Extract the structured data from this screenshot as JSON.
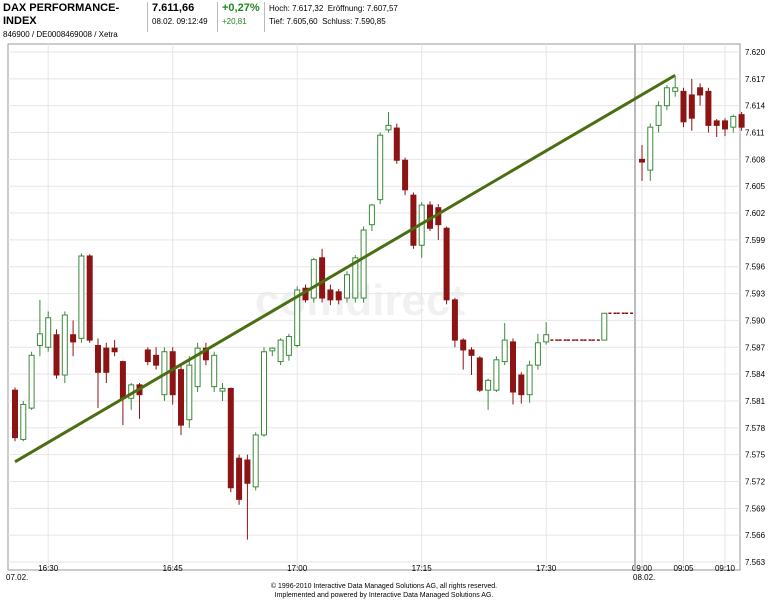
{
  "header": {
    "title": "DAX PERFORMANCE-INDEX",
    "code": "846900 / DE0008469008 / Xetra",
    "price": "7.611,66",
    "time": "08.02. 09:12:49",
    "change_pct": "+0,27%",
    "change_abs": "+20,81",
    "high": "Hoch: 7.617,32",
    "open": "Eröffnung: 7.607,57",
    "low": "Tief: 7.605,60",
    "close": "Schluss: 7.590,85"
  },
  "chart_data": {
    "type": "candlestick",
    "watermark": "comdirect",
    "categories": [
      null,
      null,
      null,
      null,
      "16:30",
      null,
      null,
      null,
      null,
      null,
      null,
      null,
      null,
      null,
      null,
      null,
      null,
      null,
      null,
      "16:45",
      null,
      null,
      null,
      null,
      null,
      null,
      null,
      null,
      null,
      null,
      null,
      null,
      null,
      null,
      "17:00",
      null,
      null,
      null,
      null,
      null,
      null,
      null,
      null,
      null,
      null,
      null,
      null,
      null,
      null,
      "17:15",
      null,
      null,
      null,
      null,
      null,
      null,
      null,
      null,
      null,
      null,
      null,
      null,
      null,
      null,
      "17:30",
      null,
      null,
      null,
      null,
      null,
      null,
      null,
      null,
      null,
      null,
      "09:00",
      null,
      null,
      null,
      null,
      "09:05",
      null,
      null,
      null,
      null,
      "09:10",
      null,
      null
    ],
    "day_labels": [
      {
        "label": "07.02.",
        "category": 0
      },
      {
        "label": "08.02.",
        "category": 75
      }
    ],
    "open": [
      7582.2,
      7576.7,
      7580.2,
      7587.2,
      7587,
      7588.4,
      7583.9,
      7588.4,
      7588,
      7597.2,
      7587.2,
      7586.9,
      7586.9,
      7585.4,
      7581.3,
      7582.8,
      7586.7,
      7586.1,
      7581.7,
      7586.5,
      7584.5,
      7578.9,
      7582.6,
      7586.9,
      7582.6,
      7582.1,
      7582.4,
      7574.6,
      7574.4,
      7571.4,
      7577.2,
      7586.6,
      7585.4,
      7586.1,
      7587.2,
      7593.6,
      7592.5,
      7597,
      7593.4,
      7593.2,
      7592.5,
      7592.5,
      7592.5,
      7600.7,
      7603.5,
      7611.3,
      7611.5,
      7607.9,
      7604,
      7598.4,
      7602.9,
      7602.6,
      7600.3,
      7592.3,
      7587.8,
      7586.7,
      7585.8,
      7582.2,
      7582.2,
      7585.4,
      7587.6,
      7583.9,
      7581.7,
      7585,
      7587.6,
      7587.8,
      7587.8,
      7587.8,
      7587.8,
      7587.8,
      7587.8,
      7587.8,
      7590.8,
      7590.8,
      7590.8,
      7608,
      7606.8,
      7611.8,
      7614,
      7615.6,
      7615.6,
      7615.2,
      7616,
      7615.6,
      7612.3,
      7612.3,
      7611.6,
      7613
    ],
    "high": [
      7582.5,
      7581,
      7586.5,
      7592.3,
      7591,
      7589,
      7591,
      7590,
      7597.5,
      7597.4,
      7588,
      7587.5,
      7587.8,
      7585.5,
      7583,
      7583,
      7587,
      7587,
      7587,
      7587,
      7585,
      7586,
      7587.5,
      7587.5,
      7586.5,
      7583,
      7582.5,
      7575,
      7575,
      7577.5,
      7587,
      7587,
      7588,
      7588.5,
      7593.8,
      7594,
      7597,
      7598,
      7594,
      7593.5,
      7595.5,
      7597.3,
      7600.5,
      7603,
      7611,
      7613.3,
      7612,
      7608.2,
      7604.3,
      7603.2,
      7603.3,
      7603,
      7600.5,
      7592.5,
      7588,
      7587,
      7586,
      7583.5,
      7586,
      7589.7,
      7588,
      7584.2,
      7585.5,
      7588.5,
      7589.8,
      7587.8,
      7587.8,
      7587.8,
      7587.8,
      7587.8,
      7587.8,
      7590.8,
      7590.8,
      7590.8,
      7590.8,
      7609.6,
      7612,
      7614.5,
      7616.3,
      7617.2,
      7616,
      7617,
      7616.5,
      7616,
      7612.5,
      7612.6,
      7613,
      7613.3
    ],
    "low": [
      7576.5,
      7576.5,
      7580,
      7586,
      7586.5,
      7583.5,
      7583,
      7586,
      7587.5,
      7587.5,
      7580.2,
      7583,
      7586,
      7578.3,
      7580,
      7579,
      7585,
      7584.5,
      7581,
      7580.6,
      7577.2,
      7578,
      7582,
      7585,
      7582,
      7581,
      7570.8,
      7569.4,
      7565.5,
      7571,
      7577,
      7586,
      7585,
      7585.5,
      7587,
      7592,
      7592,
      7592,
      7591.7,
      7591.8,
      7592,
      7592,
      7592,
      7600,
      7603,
      7611,
      7607.5,
      7604,
      7598,
      7597,
      7600,
      7599,
      7591.8,
      7587,
      7584.5,
      7583.9,
      7582,
      7580,
      7582,
      7585,
      7580.6,
      7580.7,
      7580.8,
      7584.5,
      7587.3,
      7587.8,
      7587.8,
      7587.8,
      7587.8,
      7587.8,
      7587.8,
      7587.8,
      7590.8,
      7590.8,
      7590.8,
      7605.6,
      7605.6,
      7611,
      7613.5,
      7615,
      7611.6,
      7611.2,
      7614,
      7611,
      7610.5,
      7610.6,
      7611,
      7611.2
    ],
    "close": [
      7576.9,
      7580.6,
      7586.1,
      7588.5,
      7590.3,
      7583.9,
      7590.6,
      7587.6,
      7597.2,
      7587.8,
      7584.2,
      7584.2,
      7586.5,
      7581.3,
      7582.8,
      7581.7,
      7585.4,
      7585,
      7586.5,
      7581.7,
      7578.3,
      7585,
      7586.9,
      7585.6,
      7586.1,
      7582.4,
      7571.3,
      7570,
      7571.8,
      7577.2,
      7586.5,
      7586.9,
      7587.8,
      7588.2,
      7593.4,
      7592.3,
      7596.8,
      7592.5,
      7592.3,
      7592.3,
      7595.1,
      7597,
      7600.1,
      7602.9,
      7610.7,
      7611.8,
      7607.9,
      7604.6,
      7598.4,
      7602.9,
      7600.3,
      7600.7,
      7592.3,
      7587.8,
      7586.7,
      7586.1,
      7582.2,
      7583.3,
      7585.6,
      7587.8,
      7582,
      7581.7,
      7585,
      7587.5,
      7588.4,
      7587.8,
      7587.8,
      7587.8,
      7587.8,
      7587.8,
      7587.8,
      7590.8,
      7590.8,
      7590.8,
      7590.8,
      7607.7,
      7611.6,
      7614,
      7616,
      7616,
      7612.2,
      7612.6,
      7615.2,
      7611.8,
      7611.8,
      7611.4,
      7612.8,
      7611.6
    ],
    "up_color": "#3a8a3a",
    "down_color": "#8c1414",
    "trendline_color": "#4a6e12",
    "trendline": {
      "start": {
        "category": 0,
        "value": 7574.2
      },
      "end": {
        "category": 79,
        "value": 7617.4
      }
    },
    "ylim": [
      7563,
      7620
    ],
    "yticks": [
      {
        "value": 7563,
        "label": "7.563"
      },
      {
        "value": 7566,
        "label": "7.566"
      },
      {
        "value": 7569,
        "label": "7.569"
      },
      {
        "value": 7572,
        "label": "7.572"
      },
      {
        "value": 7575,
        "label": "7.575"
      },
      {
        "value": 7578,
        "label": "7.578"
      },
      {
        "value": 7581,
        "label": "7.581"
      },
      {
        "value": 7584,
        "label": "7.584"
      },
      {
        "value": 7587,
        "label": "7.587"
      },
      {
        "value": 7590,
        "label": "7.590"
      },
      {
        "value": 7593,
        "label": "7.593"
      },
      {
        "value": 7596,
        "label": "7.596"
      },
      {
        "value": 7599,
        "label": "7.599"
      },
      {
        "value": 7602,
        "label": "7.602"
      },
      {
        "value": 7605,
        "label": "7.605"
      },
      {
        "value": 7608,
        "label": "7.608"
      },
      {
        "value": 7611,
        "label": "7.611"
      },
      {
        "value": 7614,
        "label": "7.614"
      },
      {
        "value": 7617,
        "label": "7.617"
      },
      {
        "value": 7620,
        "label": "7.620"
      }
    ],
    "grid": true
  },
  "footer": {
    "line1": "© 1996-2010 Interactive Data Managed Solutions AG, all rights reserved.",
    "line2": "Implemented and powered by Interactive Data Managed Solutions AG."
  }
}
